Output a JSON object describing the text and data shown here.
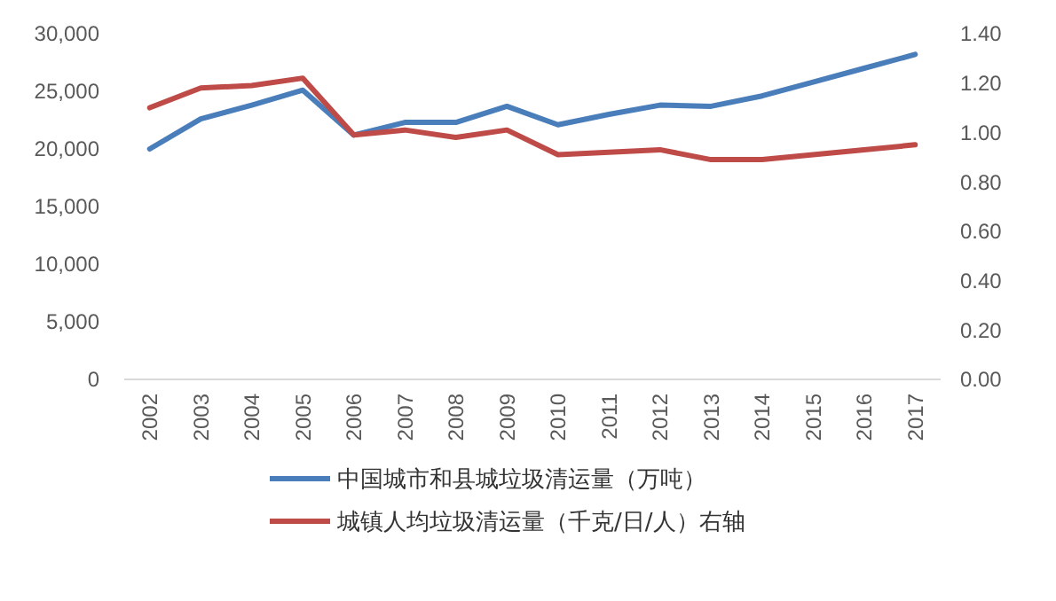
{
  "chart_data": {
    "type": "line",
    "categories": [
      "2002",
      "2003",
      "2004",
      "2005",
      "2006",
      "2007",
      "2008",
      "2009",
      "2010",
      "2011",
      "2012",
      "2013",
      "2014",
      "2015",
      "2016",
      "2017"
    ],
    "series": [
      {
        "name": "中国城市和县城垃圾清运量（万吨）",
        "color": "#4a7ebb",
        "values": [
          20000,
          22600,
          23800,
          25100,
          21200,
          22300,
          22300,
          23700,
          22100,
          23000,
          23800,
          23700,
          24600,
          25800,
          27000,
          28200
        ]
      },
      {
        "name": "城镇人均垃圾清运量（千克/日/人）右轴",
        "color": "#be4b48",
        "axis": "y2",
        "values": [
          1.1,
          1.18,
          1.19,
          1.22,
          0.99,
          1.01,
          0.98,
          1.01,
          0.91,
          0.92,
          0.93,
          0.89,
          0.89,
          0.91,
          0.93,
          0.95
        ]
      }
    ],
    "ylim": [
      0,
      30000
    ],
    "yticks": [
      {
        "value": 0,
        "label": "0"
      },
      {
        "value": 5000,
        "label": "5,000"
      },
      {
        "value": 10000,
        "label": "10,000"
      },
      {
        "value": 15000,
        "label": "15,000"
      },
      {
        "value": 20000,
        "label": "20,000"
      },
      {
        "value": 25000,
        "label": "25,000"
      },
      {
        "value": 30000,
        "label": "30,000"
      }
    ],
    "y2lim": [
      0,
      1.4
    ],
    "y2ticks": [
      {
        "value": 0,
        "label": "0.00"
      },
      {
        "value": 0.2,
        "label": "0.20"
      },
      {
        "value": 0.4,
        "label": "0.40"
      },
      {
        "value": 0.6,
        "label": "0.60"
      },
      {
        "value": 0.8,
        "label": "0.80"
      },
      {
        "value": 1.0,
        "label": "1.00"
      },
      {
        "value": 1.2,
        "label": "1.20"
      },
      {
        "value": 1.4,
        "label": "1.40"
      }
    ],
    "legend": "bottom",
    "grid": false,
    "marker": "none",
    "line_style": "solid"
  }
}
